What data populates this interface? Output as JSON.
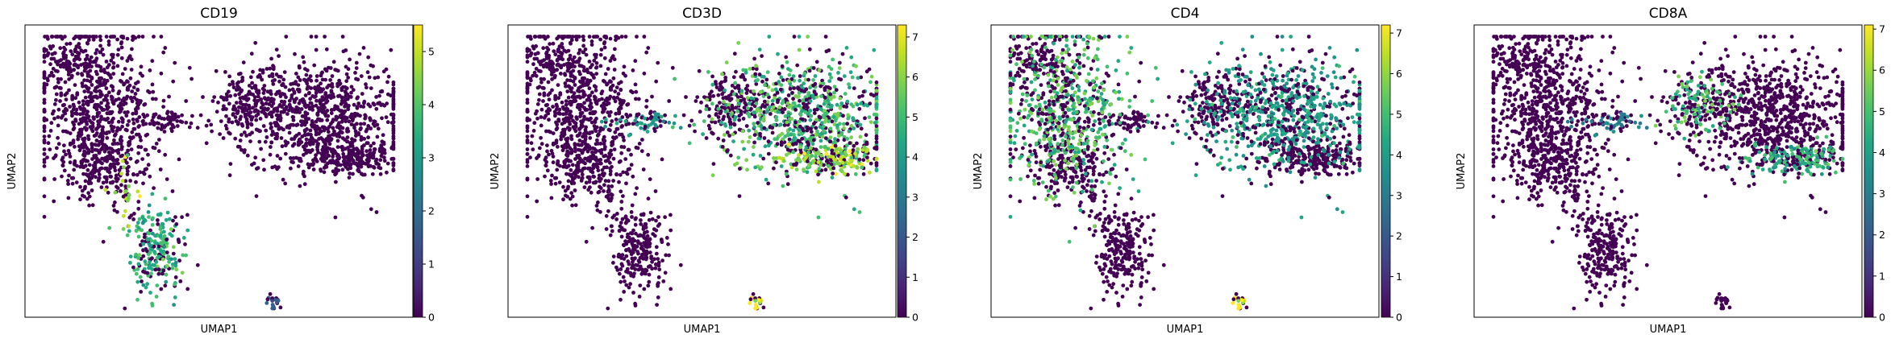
{
  "chart_data": [
    {
      "type": "scatter",
      "title": "CD19",
      "xlabel": "UMAP1",
      "ylabel": "UMAP2",
      "colorbar": {
        "ticks": [
          "0",
          "1",
          "2",
          "3",
          "4",
          "5"
        ],
        "vmin": 0,
        "vmax": 5.5
      },
      "colormap": "viridis",
      "point_color_default": "#440154",
      "hotspots": [
        {
          "region": "lower-cluster",
          "level": 3.5
        },
        {
          "region": "bridge-bottom",
          "level": 4.5
        },
        {
          "region": "small-bottom-cluster",
          "level": 1.5
        }
      ]
    },
    {
      "type": "scatter",
      "title": "CD3D",
      "xlabel": "UMAP1",
      "ylabel": "UMAP2",
      "colorbar": {
        "ticks": [
          "0",
          "1",
          "2",
          "3",
          "4",
          "5",
          "6",
          "7"
        ],
        "vmin": 0,
        "vmax": 7.3
      },
      "colormap": "viridis",
      "point_color_default": "#440154",
      "hotspots": [
        {
          "region": "right-cluster",
          "level": 5.0
        },
        {
          "region": "right-cluster-bottom",
          "level": 6.0
        },
        {
          "region": "bridge",
          "level": 4.0
        },
        {
          "region": "small-bottom-cluster",
          "level": 7.0
        }
      ]
    },
    {
      "type": "scatter",
      "title": "CD4",
      "xlabel": "UMAP1",
      "ylabel": "UMAP2",
      "colorbar": {
        "ticks": [
          "0",
          "1",
          "2",
          "3",
          "4",
          "5",
          "6",
          "7"
        ],
        "vmin": 0,
        "vmax": 7.2
      },
      "colormap": "viridis",
      "point_color_default": "#440154",
      "hotspots": [
        {
          "region": "left-cluster",
          "level": 5.0
        },
        {
          "region": "right-cluster",
          "level": 4.0
        },
        {
          "region": "small-bottom-cluster",
          "level": 7.0
        }
      ]
    },
    {
      "type": "scatter",
      "title": "CD8A",
      "xlabel": "UMAP1",
      "ylabel": "UMAP2",
      "colorbar": {
        "ticks": [
          "0",
          "1",
          "2",
          "3",
          "4",
          "5",
          "6",
          "7"
        ],
        "vmin": 0,
        "vmax": 7.1
      },
      "colormap": "viridis",
      "point_color_default": "#440154",
      "hotspots": [
        {
          "region": "right-cluster-bottom",
          "level": 4.5
        },
        {
          "region": "right-cluster-left",
          "level": 5.0
        },
        {
          "region": "bridge",
          "level": 3.0
        }
      ]
    }
  ]
}
